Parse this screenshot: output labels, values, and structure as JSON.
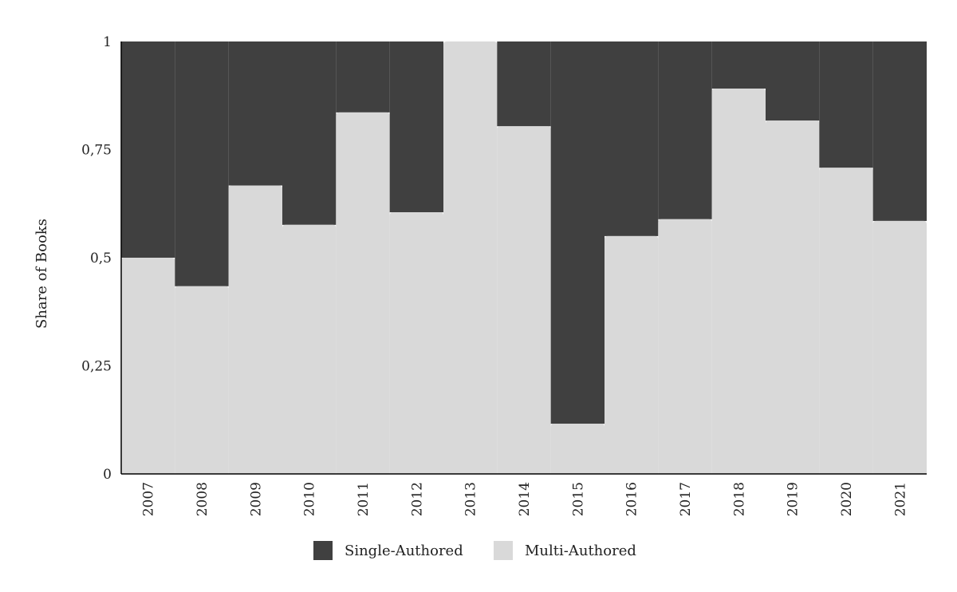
{
  "chart_data": {
    "type": "area",
    "stacked": true,
    "step": true,
    "title": "",
    "xlabel": "",
    "ylabel": "Share of Books",
    "ylim": [
      0,
      1
    ],
    "yticks": [
      "0",
      "0,25",
      "0,5",
      "0,75",
      "1"
    ],
    "categories": [
      "2007",
      "2008",
      "2009",
      "2010",
      "2011",
      "2012",
      "2013",
      "2014",
      "2015",
      "2016",
      "2017",
      "2018",
      "2019",
      "2020",
      "2021"
    ],
    "series": [
      {
        "name": "Multi-Authored",
        "color": "#d9d9d9",
        "values": [
          0.5,
          0.434,
          0.667,
          0.576,
          0.836,
          0.605,
          1.0,
          0.804,
          0.116,
          0.55,
          0.589,
          0.891,
          0.817,
          0.708,
          0.585
        ]
      },
      {
        "name": "Single-Authored",
        "color": "#404040",
        "values": [
          0.5,
          0.566,
          0.333,
          0.424,
          0.164,
          0.395,
          0.0,
          0.196,
          0.884,
          0.45,
          0.411,
          0.109,
          0.183,
          0.292,
          0.415
        ]
      }
    ],
    "legend": {
      "placement": "bottom",
      "entries": [
        "Single-Authored",
        "Multi-Authored"
      ]
    },
    "grid": false
  }
}
